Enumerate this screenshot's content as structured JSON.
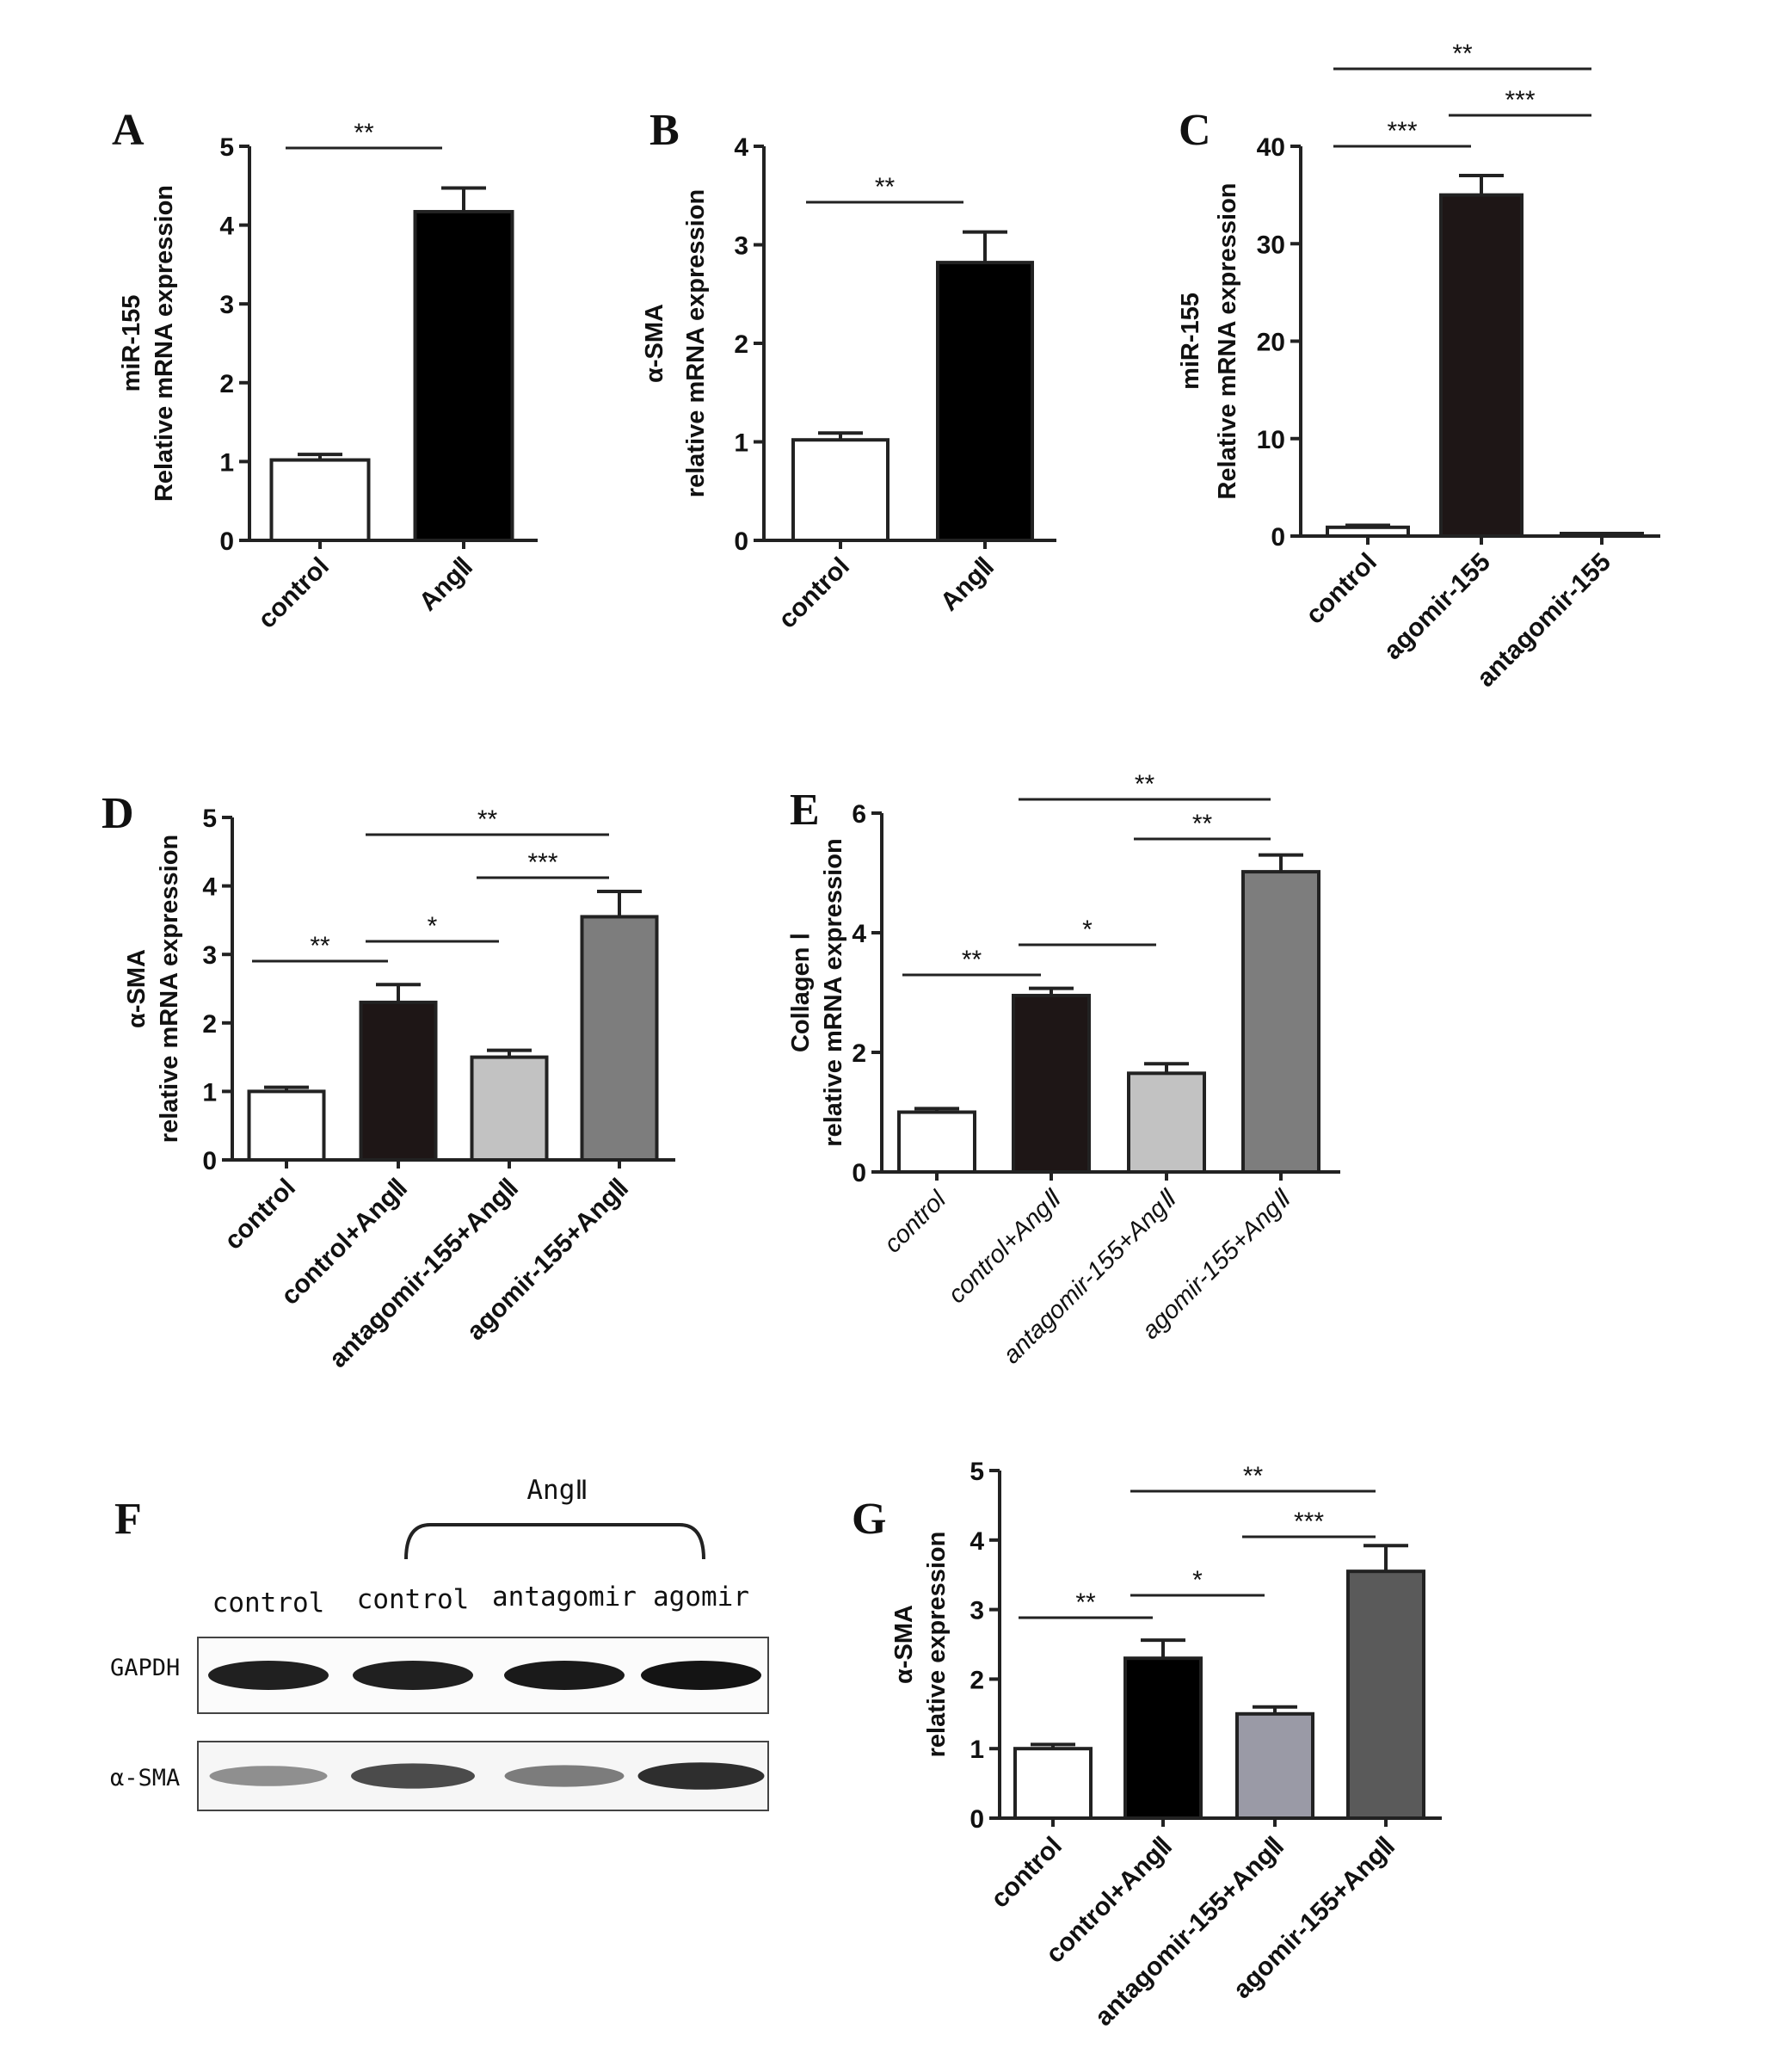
{
  "chart_data": [
    {
      "panel": "A",
      "type": "bar",
      "ylabel": [
        "miR-155",
        "Relative mRNA expression"
      ],
      "categories": [
        "control",
        "AngⅡ"
      ],
      "values": [
        1.02,
        4.17
      ],
      "errors": [
        0.07,
        0.3
      ],
      "colors": [
        "#ffffff",
        "#000000"
      ],
      "ylim": [
        0,
        5
      ],
      "yticks": [
        0,
        1,
        2,
        3,
        4,
        5
      ],
      "significance": [
        {
          "from": 0,
          "to": 1,
          "label": "**",
          "level": 1
        }
      ]
    },
    {
      "panel": "B",
      "type": "bar",
      "ylabel": [
        "α-SMA",
        "relative mRNA expression"
      ],
      "categories": [
        "control",
        "AngⅡ"
      ],
      "values": [
        1.02,
        2.82
      ],
      "errors": [
        0.07,
        0.31
      ],
      "colors": [
        "#ffffff",
        "#000000"
      ],
      "ylim": [
        0,
        4
      ],
      "yticks": [
        0,
        1,
        2,
        3,
        4
      ],
      "significance": [
        {
          "from": 0,
          "to": 1,
          "label": "**",
          "level": 1
        }
      ]
    },
    {
      "panel": "C",
      "type": "bar",
      "ylabel": [
        "miR-155",
        "Relative mRNA expression"
      ],
      "categories": [
        "control",
        "agomir-155",
        "antagomir-155"
      ],
      "values": [
        0.9,
        35.0,
        0.1
      ],
      "errors": [
        0.2,
        2.0,
        0.05
      ],
      "colors": [
        "#ffffff",
        "#1e1616",
        "#ffffff"
      ],
      "ylim": [
        0,
        40
      ],
      "yticks": [
        0,
        10,
        20,
        30,
        40
      ],
      "significance": [
        {
          "from": 0,
          "to": 1,
          "label": "***",
          "level": 1
        },
        {
          "from": 1,
          "to": 2,
          "label": "***",
          "level": 2
        },
        {
          "from": 0,
          "to": 2,
          "label": "**",
          "level": 3
        }
      ]
    },
    {
      "panel": "D",
      "type": "bar",
      "ylabel": [
        "α-SMA",
        "relative mRNA expression"
      ],
      "categories": [
        "control",
        "control+AngⅡ",
        "antagomir-155+AngⅡ",
        "agomir-155+AngⅡ"
      ],
      "values": [
        1.0,
        2.3,
        1.5,
        3.55
      ],
      "errors": [
        0.06,
        0.26,
        0.1,
        0.37
      ],
      "colors": [
        "#ffffff",
        "#1e1616",
        "#c2c2c2",
        "#7d7d7d"
      ],
      "ylim": [
        0,
        5
      ],
      "yticks": [
        0,
        1,
        2,
        3,
        4,
        5
      ],
      "significance": [
        {
          "from": 0,
          "to": 1,
          "label": "**",
          "level": 1
        },
        {
          "from": 1,
          "to": 2,
          "label": "*",
          "level": 2
        },
        {
          "from": 2,
          "to": 3,
          "label": "***",
          "level": 3
        },
        {
          "from": 1,
          "to": 3,
          "label": "**",
          "level": 4
        }
      ]
    },
    {
      "panel": "E",
      "type": "bar",
      "ylabel": [
        "Collagen Ⅰ",
        "relative mRNA expression"
      ],
      "categories": [
        "control",
        "control+AngⅡ",
        "antagomir-155+AngⅡ",
        "agomir-155+AngⅡ"
      ],
      "values": [
        1.0,
        2.95,
        1.65,
        5.02
      ],
      "errors": [
        0.06,
        0.12,
        0.16,
        0.28
      ],
      "colors": [
        "#ffffff",
        "#1e1616",
        "#c2c2c2",
        "#7d7d7d"
      ],
      "ylim": [
        0,
        6
      ],
      "yticks": [
        0,
        2,
        4,
        6
      ],
      "italic_categories": true,
      "significance": [
        {
          "from": 0,
          "to": 1,
          "label": "**",
          "level": 1
        },
        {
          "from": 1,
          "to": 2,
          "label": "*",
          "level": 2
        },
        {
          "from": 2,
          "to": 3,
          "label": "**",
          "level": 3
        },
        {
          "from": 1,
          "to": 3,
          "label": "**",
          "level": 4
        }
      ]
    },
    {
      "panel": "G",
      "type": "bar",
      "ylabel": [
        "α-SMA",
        "relative expression"
      ],
      "categories": [
        "control",
        "control+AngⅡ",
        "antagomir-155+AngⅡ",
        "agomir-155+AngⅡ"
      ],
      "values": [
        1.0,
        2.3,
        1.5,
        3.55
      ],
      "errors": [
        0.06,
        0.26,
        0.1,
        0.37
      ],
      "colors": [
        "#ffffff",
        "#000000",
        "#9a9aa6",
        "#5a5a5a"
      ],
      "ylim": [
        0,
        5
      ],
      "yticks": [
        0,
        1,
        2,
        3,
        4,
        5
      ],
      "significance": [
        {
          "from": 0,
          "to": 1,
          "label": "**",
          "level": 1
        },
        {
          "from": 1,
          "to": 2,
          "label": "*",
          "level": 2
        },
        {
          "from": 2,
          "to": 3,
          "label": "***",
          "level": 3
        },
        {
          "from": 1,
          "to": 3,
          "label": "**",
          "level": 4
        }
      ]
    }
  ],
  "western_blot": {
    "panel": "F",
    "treatment_label": "AngⅡ",
    "lanes": [
      "control",
      "control",
      "antagomir",
      "agomir"
    ],
    "rows": [
      {
        "label": "GAPDH",
        "intensities": [
          0.92,
          0.92,
          0.95,
          0.98
        ]
      },
      {
        "label": "α-SMA",
        "intensities": [
          0.35,
          0.7,
          0.45,
          0.85
        ]
      }
    ]
  }
}
